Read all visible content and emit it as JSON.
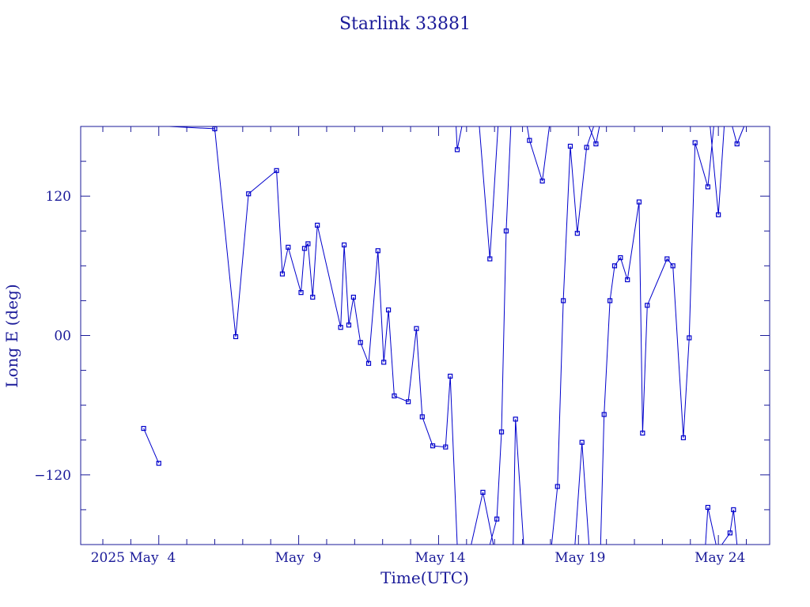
{
  "chart_data": {
    "type": "line",
    "title": "Starlink 33881",
    "xlabel": "Time(UTC)",
    "ylabel": "Long E (deg)",
    "xlim": [
      "2025-05-01T05:00",
      "2025-05-25T20:00"
    ],
    "ylim": [
      -180,
      180
    ],
    "x_tick_labels": [
      "2025 May  4",
      "May  9",
      "May 14",
      "May 19",
      "May 24"
    ],
    "y_tick_labels": [
      "-120",
      "00",
      "120"
    ],
    "color": "#0000cc",
    "series": [
      {
        "points": [
          [
            "2025-05-03T11:00",
            -80
          ],
          [
            "2025-05-04T00:00",
            -110
          ]
        ]
      },
      {
        "points": [
          [
            "2025-05-04T09:00",
            -180
          ]
        ]
      },
      {
        "points": [
          [
            "2025-05-04T09:00",
            180
          ],
          [
            "2025-05-06T00:00",
            178
          ],
          [
            "2025-05-06T18:00",
            -1
          ],
          [
            "2025-05-07T05:00",
            122
          ],
          [
            "2025-05-08T05:00",
            142
          ],
          [
            "2025-05-08T10:00",
            53
          ],
          [
            "2025-05-08T15:00",
            76
          ],
          [
            "2025-05-09T02:00",
            37
          ],
          [
            "2025-05-09T05:00",
            75
          ],
          [
            "2025-05-09T08:00",
            79
          ],
          [
            "2025-05-09T12:00",
            33
          ],
          [
            "2025-05-09T16:00",
            95
          ],
          [
            "2025-05-10T12:00",
            7
          ],
          [
            "2025-05-10T15:00",
            78
          ],
          [
            "2025-05-10T19:00",
            9
          ],
          [
            "2025-05-10T23:00",
            33
          ],
          [
            "2025-05-11T05:00",
            -6
          ],
          [
            "2025-05-11T12:00",
            -24
          ],
          [
            "2025-05-11T20:00",
            73
          ],
          [
            "2025-05-12T01:00",
            -23
          ],
          [
            "2025-05-12T05:00",
            22
          ],
          [
            "2025-05-12T10:00",
            -52
          ],
          [
            "2025-05-12T22:00",
            -57
          ],
          [
            "2025-05-13T05:00",
            6
          ],
          [
            "2025-05-13T10:00",
            -70
          ],
          [
            "2025-05-13T19:00",
            -95
          ],
          [
            "2025-05-14T06:00",
            -96
          ],
          [
            "2025-05-14T10:00",
            -35
          ],
          [
            "2025-05-14T16:00",
            -180
          ]
        ]
      },
      {
        "points": [
          [
            "2025-05-14T15:00",
            180
          ],
          [
            "2025-05-14T16:00",
            160
          ],
          [
            "2025-05-14T20:00",
            180
          ]
        ]
      },
      {
        "points": [
          [
            "2025-05-15T04:00",
            -180
          ],
          [
            "2025-05-15T14:00",
            -135
          ],
          [
            "2025-05-15T23:00",
            -180
          ]
        ]
      },
      {
        "points": [
          [
            "2025-05-15T11:00",
            180
          ],
          [
            "2025-05-15T20:00",
            66
          ],
          [
            "2025-05-16T03:00",
            182
          ],
          [
            "2025-05-16T05:00",
            180
          ]
        ]
      },
      {
        "points": [
          [
            "2025-05-15T20:00",
            -180
          ],
          [
            "2025-05-16T02:00",
            -158
          ],
          [
            "2025-05-16T06:00",
            -83
          ],
          [
            "2025-05-16T10:00",
            90
          ],
          [
            "2025-05-16T14:00",
            180
          ]
        ]
      },
      {
        "points": [
          [
            "2025-05-16T16:00",
            -180
          ],
          [
            "2025-05-16T18:00",
            -72
          ],
          [
            "2025-05-17T01:00",
            -180
          ]
        ]
      },
      {
        "points": [
          [
            "2025-05-17T04:00",
            180
          ],
          [
            "2025-05-17T06:00",
            168
          ],
          [
            "2025-05-17T17:00",
            133
          ],
          [
            "2025-05-17T23:00",
            180
          ]
        ]
      },
      {
        "points": [
          [
            "2025-05-18T01:00",
            -180
          ],
          [
            "2025-05-18T06:00",
            -130
          ],
          [
            "2025-05-18T11:00",
            30
          ],
          [
            "2025-05-18T17:00",
            163
          ],
          [
            "2025-05-18T23:00",
            88
          ],
          [
            "2025-05-19T07:00",
            162
          ],
          [
            "2025-05-19T13:00",
            180
          ]
        ]
      },
      {
        "points": [
          [
            "2025-05-18T21:00",
            -180
          ],
          [
            "2025-05-19T03:00",
            -92
          ],
          [
            "2025-05-19T09:00",
            -180
          ]
        ]
      },
      {
        "points": [
          [
            "2025-05-19T09:00",
            180
          ],
          [
            "2025-05-19T15:00",
            165
          ],
          [
            "2025-05-19T18:00",
            180
          ]
        ]
      },
      {
        "points": [
          [
            "2025-05-19T19:00",
            -180
          ],
          [
            "2025-05-19T22:00",
            -68
          ],
          [
            "2025-05-20T03:00",
            30
          ],
          [
            "2025-05-20T07:00",
            60
          ],
          [
            "2025-05-20T12:00",
            67
          ],
          [
            "2025-05-20T18:00",
            48
          ],
          [
            "2025-05-21T04:00",
            115
          ],
          [
            "2025-05-21T07:00",
            -84
          ],
          [
            "2025-05-21T11:00",
            26
          ],
          [
            "2025-05-22T04:00",
            66
          ],
          [
            "2025-05-22T09:00",
            60
          ],
          [
            "2025-05-22T18:00",
            -88
          ],
          [
            "2025-05-22T23:00",
            -2
          ],
          [
            "2025-05-23T04:00",
            166
          ],
          [
            "2025-05-23T15:00",
            128
          ],
          [
            "2025-05-23T20:00",
            180
          ]
        ]
      },
      {
        "points": [
          [
            "2025-05-23T13:00",
            -180
          ],
          [
            "2025-05-23T15:00",
            -148
          ],
          [
            "2025-05-23T22:00",
            -180
          ]
        ]
      },
      {
        "points": [
          [
            "2025-05-23T17:00",
            180
          ],
          [
            "2025-05-24T00:00",
            104
          ],
          [
            "2025-05-24T05:00",
            180
          ]
        ]
      },
      {
        "points": [
          [
            "2025-05-24T03:00",
            -180
          ],
          [
            "2025-05-24T10:00",
            -170
          ],
          [
            "2025-05-24T13:00",
            -150
          ],
          [
            "2025-05-24T16:00",
            -180
          ]
        ]
      },
      {
        "points": [
          [
            "2025-05-24T12:00",
            180
          ],
          [
            "2025-05-24T16:00",
            165
          ],
          [
            "2025-05-24T22:00",
            180
          ]
        ]
      }
    ]
  }
}
